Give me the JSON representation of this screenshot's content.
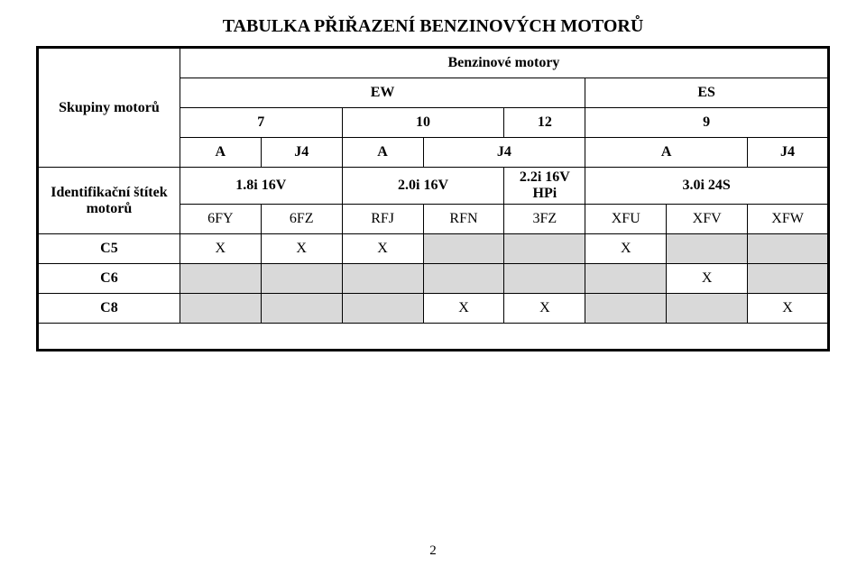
{
  "title": "TABULKA PŘIŘAZENÍ BENZINOVÝCH MOTORŮ",
  "header": {
    "subtitle": "Benzinové motory",
    "group_label": "Skupiny motorů",
    "ew": "EW",
    "es": "ES",
    "nums": {
      "n7": "7",
      "n10": "10",
      "n12": "12",
      "n9": "9"
    },
    "aj": {
      "a": "A",
      "j4": "J4"
    },
    "engines": {
      "e1": "1.8i 16V",
      "e2": "2.0i 16V",
      "e3": "2.2i 16V HPi",
      "e4": "3.0i 24S"
    },
    "id_label": "Identifikační štítek motorů",
    "codes": {
      "c1": "6FY",
      "c2": "6FZ",
      "c3": "RFJ",
      "c4": "RFN",
      "c5": "3FZ",
      "c6": "XFU",
      "c7": "XFV",
      "c8": "XFW"
    }
  },
  "rows": {
    "r1": {
      "label": "C5",
      "v1": "X",
      "v2": "X",
      "v3": "X",
      "v4": "",
      "v5": "",
      "v6": "X",
      "v7": "",
      "v8": ""
    },
    "r2": {
      "label": "C6",
      "v1": "",
      "v2": "",
      "v3": "",
      "v4": "",
      "v5": "",
      "v6": "",
      "v7": "X",
      "v8": ""
    },
    "r3": {
      "label": "C8",
      "v1": "",
      "v2": "",
      "v3": "",
      "v4": "X",
      "v5": "X",
      "v6": "",
      "v7": "",
      "v8": "X"
    }
  },
  "page_number": "2"
}
